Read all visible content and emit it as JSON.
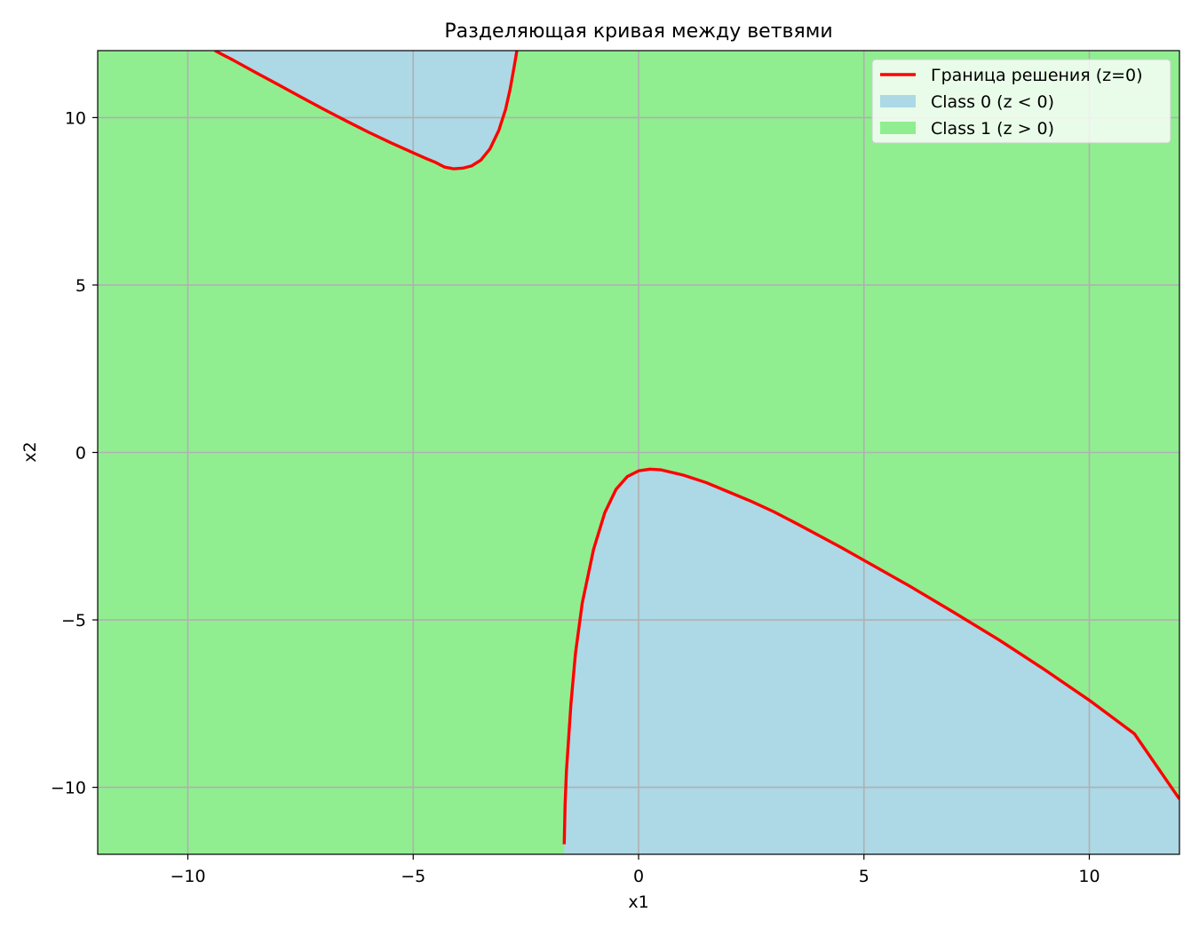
{
  "chart_data": {
    "type": "area",
    "title": "Разделяющая кривая между ветвями",
    "xlabel": "x1",
    "ylabel": "x2",
    "xlim": [
      -12,
      12
    ],
    "ylim": [
      -12,
      12
    ],
    "xticks": [
      -10,
      -5,
      0,
      5,
      10
    ],
    "xtick_labels": [
      "−10",
      "−5",
      "0",
      "5",
      "10"
    ],
    "yticks": [
      -10,
      -5,
      0,
      5,
      10
    ],
    "ytick_labels": [
      "−10",
      "−5",
      "0",
      "5",
      "10"
    ],
    "grid": true,
    "legend_position": "top-right",
    "legend": [
      {
        "label": "Граница решения (z=0)",
        "kind": "line",
        "color": "#ff0000"
      },
      {
        "label": "Class 0 (z < 0)",
        "kind": "patch",
        "color": "#add8e6"
      },
      {
        "label": "Class 1 (z > 0)",
        "kind": "patch",
        "color": "#90ee90"
      }
    ],
    "colors": {
      "class0": "#add8e6",
      "class1": "#90ee90",
      "boundary": "#ff0000",
      "grid": "#b0b0b0"
    },
    "series": [
      {
        "name": "Граница решения (z=0)",
        "branch": "upper",
        "points": [
          [
            -9.4,
            12.0
          ],
          [
            -9.0,
            11.72
          ],
          [
            -8.5,
            11.35
          ],
          [
            -8.0,
            10.99
          ],
          [
            -7.5,
            10.62
          ],
          [
            -7.0,
            10.26
          ],
          [
            -6.5,
            9.91
          ],
          [
            -6.0,
            9.57
          ],
          [
            -5.5,
            9.25
          ],
          [
            -5.0,
            8.95
          ],
          [
            -4.7,
            8.77
          ],
          [
            -4.5,
            8.66
          ],
          [
            -4.3,
            8.52
          ],
          [
            -4.1,
            8.47
          ],
          [
            -3.9,
            8.49
          ],
          [
            -3.7,
            8.56
          ],
          [
            -3.5,
            8.73
          ],
          [
            -3.3,
            9.06
          ],
          [
            -3.1,
            9.62
          ],
          [
            -2.95,
            10.25
          ],
          [
            -2.85,
            10.85
          ],
          [
            -2.75,
            11.6
          ],
          [
            -2.7,
            12.0
          ]
        ]
      },
      {
        "name": "Граница решения (z=0)",
        "branch": "lower",
        "points": [
          [
            -1.65,
            -11.7
          ],
          [
            -1.63,
            -10.5
          ],
          [
            -1.6,
            -9.5
          ],
          [
            -1.55,
            -8.5
          ],
          [
            -1.5,
            -7.5
          ],
          [
            -1.4,
            -6.0
          ],
          [
            -1.25,
            -4.5
          ],
          [
            -1.0,
            -2.9
          ],
          [
            -0.75,
            -1.8
          ],
          [
            -0.5,
            -1.1
          ],
          [
            -0.25,
            -0.72
          ],
          [
            0.0,
            -0.55
          ],
          [
            0.25,
            -0.5
          ],
          [
            0.5,
            -0.52
          ],
          [
            1.0,
            -0.68
          ],
          [
            1.5,
            -0.9
          ],
          [
            2.0,
            -1.18
          ],
          [
            2.5,
            -1.46
          ],
          [
            3.0,
            -1.77
          ],
          [
            3.5,
            -2.12
          ],
          [
            4.0,
            -2.48
          ],
          [
            4.5,
            -2.84
          ],
          [
            5.0,
            -3.22
          ],
          [
            6.0,
            -3.98
          ],
          [
            7.0,
            -4.78
          ],
          [
            8.0,
            -5.6
          ],
          [
            9.0,
            -6.48
          ],
          [
            10.0,
            -7.4
          ],
          [
            11.0,
            -8.4
          ],
          [
            12.0,
            -10.35
          ]
        ]
      }
    ],
    "regions": [
      {
        "name": "Class 0 (z < 0)",
        "color": "#add8e6",
        "bounded_by": "upper",
        "side": "above"
      },
      {
        "name": "Class 0 (z < 0)",
        "color": "#add8e6",
        "bounded_by": "lower",
        "side": "below"
      }
    ]
  }
}
